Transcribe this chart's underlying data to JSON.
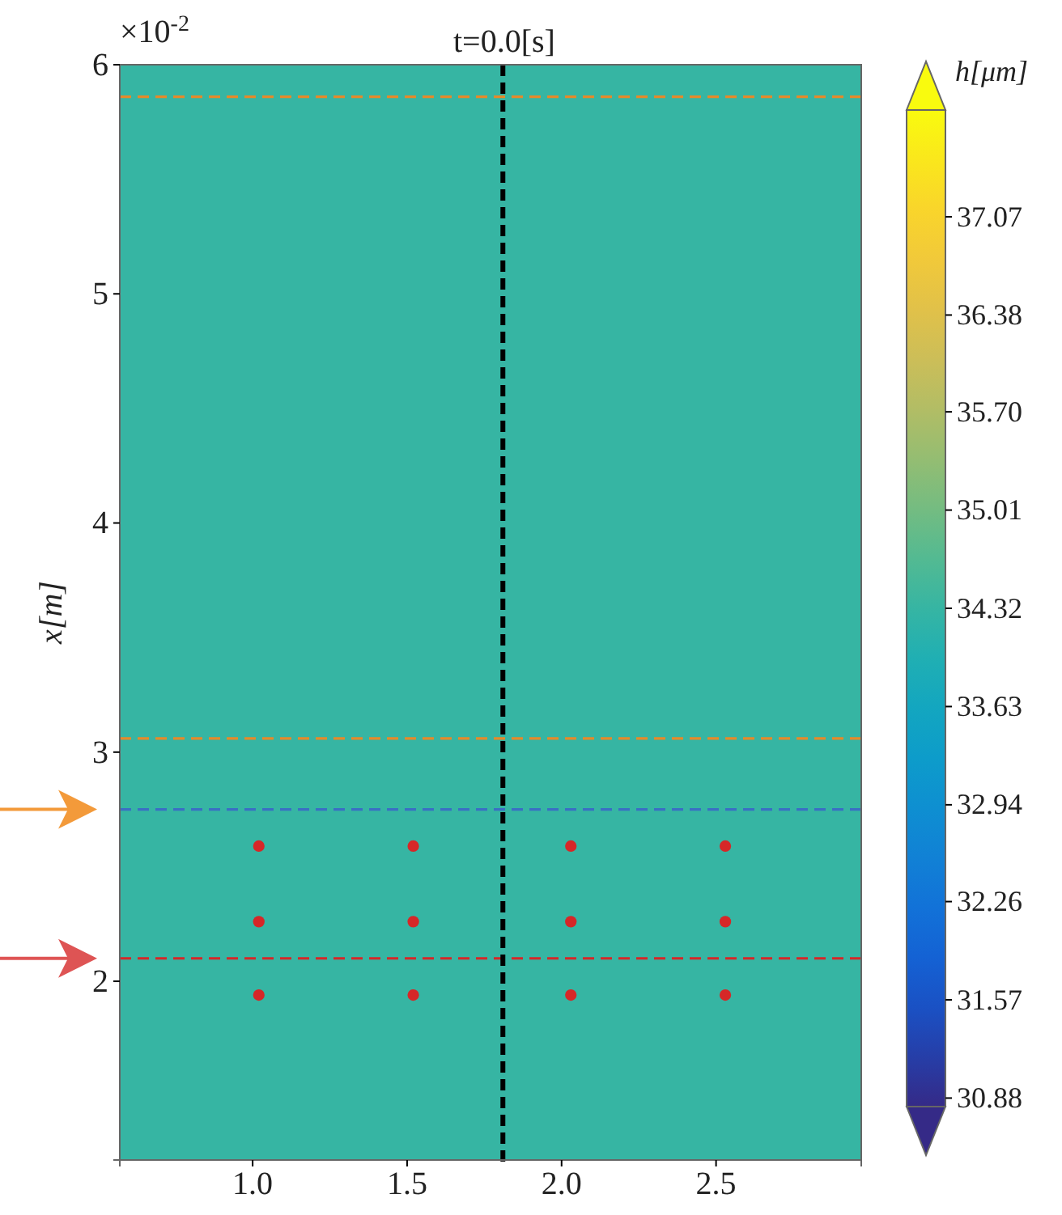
{
  "chart_data": {
    "type": "heatmap",
    "title": "t=0.0[s]",
    "ylabel": "x[m]",
    "clabel": "h[μm]",
    "annotations": [
      "×10$^{-2}$"
    ],
    "cells": [
      [
        34.32
      ]
    ],
    "xlim": [
      0.57,
      2.97
    ],
    "xticks": [
      {
        "value": 1.0,
        "label": "1.0"
      },
      {
        "value": 1.5,
        "label": "1.5"
      },
      {
        "value": 2.0,
        "label": "2.0"
      },
      {
        "value": 2.5,
        "label": "2.5"
      }
    ],
    "ylim": [
      1.22,
      6
    ],
    "yticks": [
      2,
      3,
      4,
      5,
      6
    ],
    "clim": [
      30.82,
      37.82
    ],
    "cticks": [
      30.88,
      31.57,
      32.26,
      32.94,
      33.63,
      34.32,
      35.01,
      {
        "value": 35.7,
        "label": "35.70"
      },
      36.38,
      37.07
    ],
    "series": [
      {
        "type": "scatter",
        "color": "#d62728",
        "x": [
          1.02,
          1.52,
          2.03,
          2.53,
          1.02,
          1.52,
          2.03,
          2.53,
          1.02,
          1.52,
          2.03,
          2.53
        ],
        "values": [
          2.59,
          2.59,
          2.59,
          2.59,
          2.26,
          2.26,
          2.26,
          2.26,
          1.94,
          1.94,
          1.94,
          1.94
        ]
      }
    ],
    "marker": "circle",
    "ref_lines": [
      {
        "axis": "y",
        "value": 5.86,
        "color": "#e58a2a",
        "line_style": "dashed"
      },
      {
        "axis": "y",
        "value": 3.06,
        "color": "#e58a2a",
        "line_style": "dashed"
      },
      {
        "axis": "y",
        "value": 2.75,
        "color": "#3a6fc4",
        "line_style": "dashed"
      },
      {
        "axis": "y",
        "value": 2.1,
        "color": "#d62728",
        "line_style": "dashed"
      },
      {
        "axis": "x",
        "value": 1.81,
        "color": "#000000",
        "line_style": "dashed"
      }
    ]
  }
}
